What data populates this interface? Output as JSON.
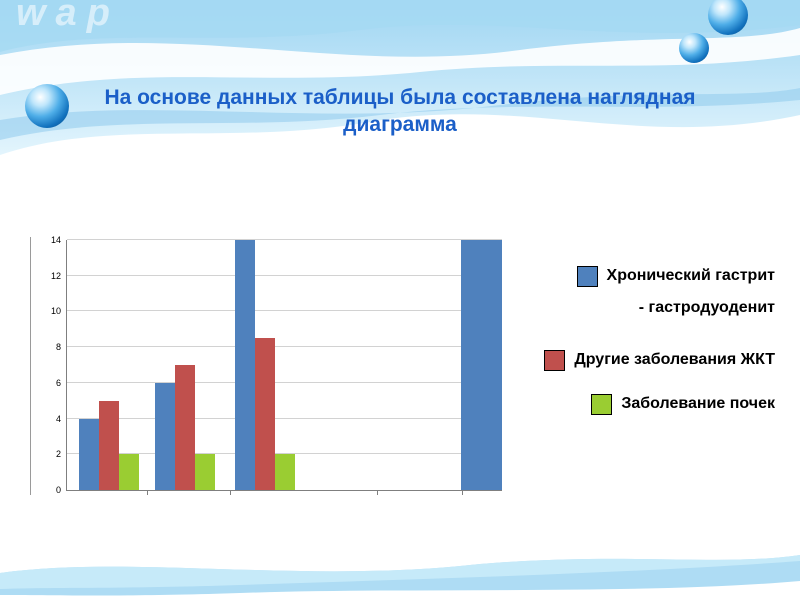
{
  "slide": {
    "watermark": "wap",
    "title": {
      "line1": "На основе данных таблицы была составлена наглядная",
      "line2": "диаграмма",
      "color": "#1b5fc8"
    }
  },
  "chart_data": {
    "type": "bar",
    "title": "",
    "xlabel": "",
    "ylabel": "",
    "categories": [
      "",
      "",
      "",
      ""
    ],
    "series": [
      {
        "name": "Хронический гастрит - гастродуоденит",
        "color": "#4f81bd",
        "values": [
          4,
          6,
          14,
          14
        ]
      },
      {
        "name": "Другие заболевания ЖКТ",
        "color": "#c0504d",
        "values": [
          5,
          7,
          8.5,
          null
        ]
      },
      {
        "name": "Заболевание почек",
        "color": "#9acd32",
        "values": [
          2,
          2,
          2,
          null
        ]
      }
    ],
    "ylim": [
      0,
      14
    ],
    "ytick_step": 2,
    "yticks": [
      0,
      2,
      4,
      6,
      8,
      10,
      12,
      14
    ],
    "grid": true,
    "legend_position": "right"
  },
  "legend": {
    "items": [
      {
        "line1": "Хронический  гастрит",
        "line2": "-  гастродуоденит",
        "color": "#4f81bd"
      },
      {
        "line1": "Другие заболевания ЖКТ",
        "color": "#c0504d"
      },
      {
        "line1": "Заболевание почек",
        "color": "#9acd32"
      }
    ]
  },
  "colors": {
    "title_blue": "#1b5fc8",
    "wave_light_blue": "#aedcf4",
    "wave_mid_blue": "#8fcbec",
    "sphere_blue": "#1272be"
  }
}
